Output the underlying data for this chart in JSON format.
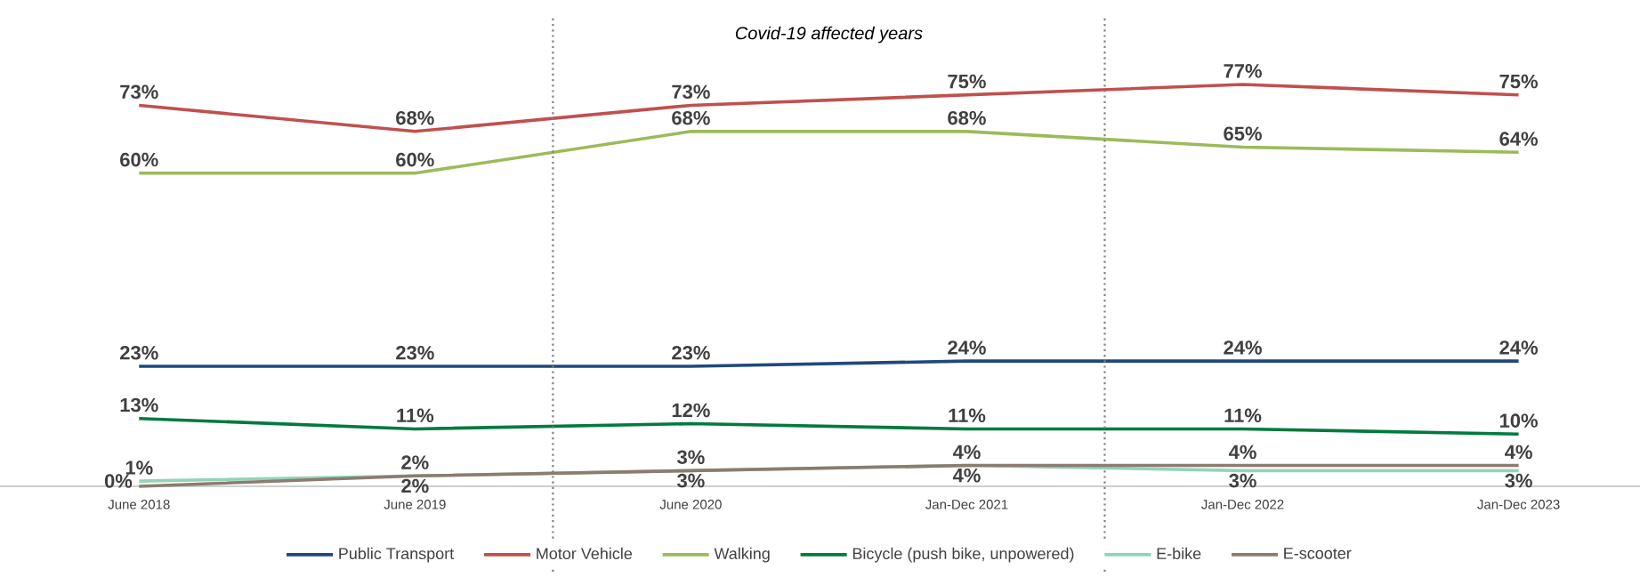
{
  "chart_data": {
    "type": "line",
    "categories": [
      "June 2018",
      "June 2019",
      "June 2020",
      "Jan-Dec 2021",
      "Jan-Dec 2022",
      "Jan-Dec 2023"
    ],
    "tick_labels": "x",
    "legend": "bottom",
    "series": [
      {
        "name": "Public Transport",
        "color": "#1f497d",
        "values": [
          23,
          23,
          23,
          24,
          24,
          24
        ],
        "value_labels": [
          "23%",
          "23%",
          "23%",
          "24%",
          "24%",
          "24%"
        ]
      },
      {
        "name": "Motor Vehicle",
        "color": "#c0504d",
        "values": [
          73,
          68,
          73,
          75,
          77,
          75
        ],
        "value_labels": [
          "73%",
          "68%",
          "73%",
          "75%",
          "77%",
          "75%"
        ]
      },
      {
        "name": "Walking",
        "color": "#9bbb59",
        "values": [
          60,
          60,
          68,
          68,
          65,
          64
        ],
        "value_labels": [
          "60%",
          "60%",
          "68%",
          "68%",
          "65%",
          "64%"
        ]
      },
      {
        "name": "Bicycle (push bike, unpowered)",
        "color": "#007a3d",
        "values": [
          13,
          11,
          12,
          11,
          11,
          10
        ],
        "value_labels": [
          "13%",
          "11%",
          "12%",
          "11%",
          "11%",
          "10%"
        ]
      },
      {
        "name": "E-bike",
        "color": "#93d3b8",
        "values": [
          1,
          2,
          3,
          4,
          3,
          3
        ],
        "value_labels": [
          "1%",
          "2%",
          "3%",
          "4%",
          "3%",
          "3%"
        ]
      },
      {
        "name": "E-scooter",
        "color": "#8c7b6e",
        "values": [
          0,
          2,
          3,
          4,
          4,
          4
        ],
        "value_labels": [
          "0%",
          "2%",
          "3%",
          "4%",
          "4%",
          "4%"
        ]
      }
    ],
    "annotations": [
      "Covid-19 affected years"
    ]
  }
}
